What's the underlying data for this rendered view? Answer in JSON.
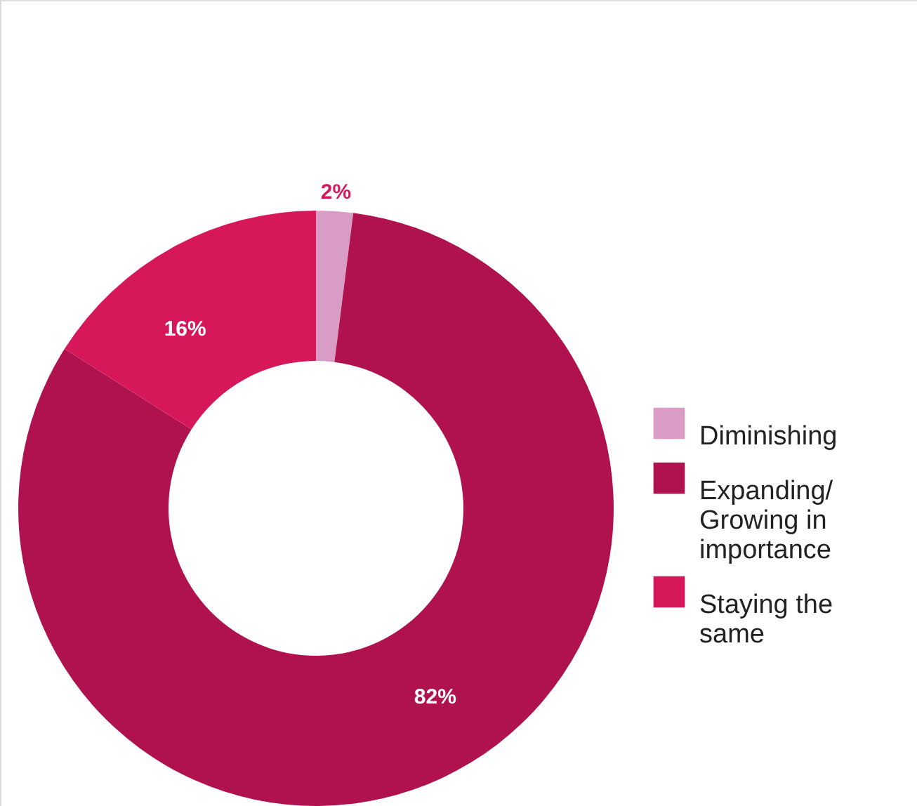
{
  "chart_data": {
    "type": "donut",
    "categories": [
      "Diminishing",
      "Expanding/Growing in importance",
      "Staying the same"
    ],
    "values": [
      2,
      82,
      16
    ],
    "colors": [
      "#d99cc5",
      "#b0124f",
      "#d6185a"
    ],
    "value_labels": [
      "2%",
      "82%",
      "16%"
    ],
    "legend": "right"
  }
}
